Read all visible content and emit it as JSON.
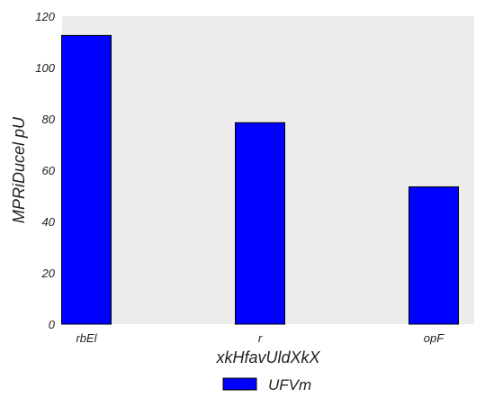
{
  "chart_data": {
    "type": "bar",
    "categories": [
      "rbEl",
      "r",
      "opF"
    ],
    "series": [
      {
        "name": "UFVm",
        "values": [
          112.5,
          78.5,
          53.5
        ],
        "color": "#0000ff"
      }
    ],
    "xlabel": "xkHfavUldXkX",
    "ylabel": "MPRiDucel pU",
    "ylim": [
      0,
      120
    ],
    "yticks": [
      0,
      20,
      40,
      60,
      80,
      100,
      120
    ],
    "grid": false,
    "background": "#ececec",
    "legend_position": "bottom-center"
  }
}
